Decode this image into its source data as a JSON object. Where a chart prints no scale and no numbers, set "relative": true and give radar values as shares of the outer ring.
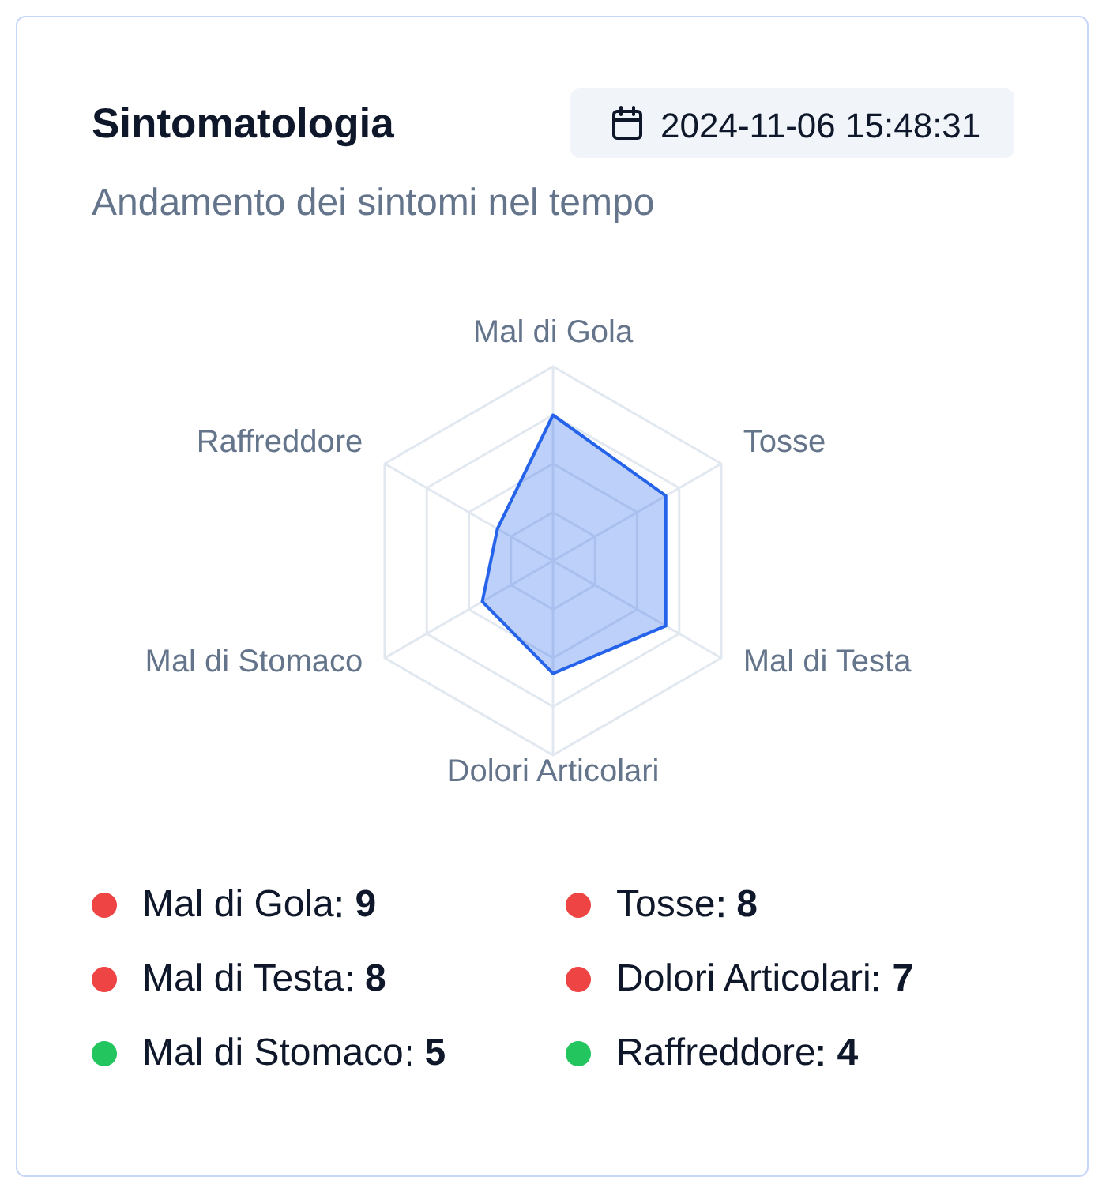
{
  "chart_data": [
    {
      "type": "radar",
      "title": "Sintomatologia",
      "subtitle": "Andamento dei sintomi nel tempo",
      "annotations": [
        "2024-11-06 15:48:31"
      ],
      "categories": [
        "Mal di Gola",
        "Tosse",
        "Mal di Testa",
        "Dolori Articolari",
        "Mal di Stomaco",
        "Raffreddore"
      ],
      "series": [
        {
          "color": "#2563eb",
          "values": [
            0.75,
            0.67,
            0.67,
            0.58,
            0.42,
            0.33
          ]
        }
      ],
      "relative": true,
      "grid": true,
      "marker": "none"
    },
    {
      "type": "other",
      "categories": [
        "Mal di Gola",
        "Tosse",
        "Mal di Testa",
        "Dolori Articolari",
        "Mal di Stomaco",
        "Raffreddore"
      ],
      "values": [
        9,
        8,
        8,
        7,
        5,
        4
      ],
      "colors": [
        "#ef4444",
        "#ef4444",
        "#ef4444",
        "#ef4444",
        "#22c55e",
        "#22c55e"
      ],
      "data_labels": true
    }
  ]
}
